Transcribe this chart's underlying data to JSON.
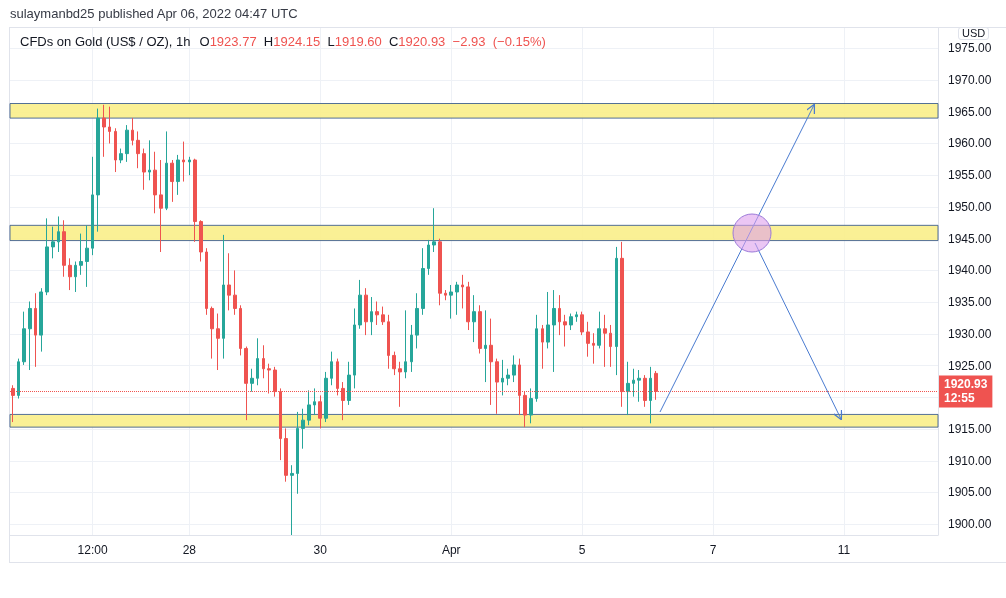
{
  "chart_data": {
    "type": "candlestick",
    "title": "CFDs on Gold (US$ / OZ), 1h",
    "subtitle": "O1923.77 H1924.15 L1919.60 C1920.93 −2.93 (−0.15%)",
    "ylabel": "USD",
    "annotations": [
      "sulaymanbd25 published Apr 06, 2022 04:47 UTC"
    ],
    "categories": [
      null,
      null,
      null,
      null,
      null,
      null,
      null,
      null,
      null,
      null,
      null,
      null,
      null,
      null,
      "12:00",
      null,
      null,
      null,
      null,
      null,
      null,
      null,
      null,
      null,
      null,
      null,
      null,
      null,
      null,
      null,
      null,
      "28",
      null,
      null,
      null,
      null,
      null,
      null,
      null,
      null,
      null,
      null,
      null,
      null,
      null,
      null,
      null,
      null,
      null,
      null,
      null,
      null,
      null,
      null,
      "30",
      null,
      null,
      null,
      null,
      null,
      null,
      null,
      null,
      null,
      null,
      null,
      null,
      null,
      null,
      null,
      null,
      null,
      null,
      null,
      null,
      null,
      null,
      "Apr",
      null,
      null,
      null,
      null,
      null,
      null,
      null,
      null,
      null,
      null,
      null,
      null,
      null,
      null,
      null,
      null,
      null,
      null,
      null,
      null,
      null,
      null,
      "5",
      null,
      null,
      null,
      null,
      null,
      null,
      null,
      null,
      null,
      null,
      null,
      null,
      null,
      null,
      null,
      null,
      null,
      null,
      null,
      null,
      null,
      null,
      "7",
      null,
      null,
      null,
      null,
      null,
      null,
      null,
      null,
      null,
      null,
      null,
      null,
      null,
      null,
      null,
      null,
      null,
      null,
      null,
      null,
      null,
      null,
      "11",
      null,
      null,
      null,
      null,
      null,
      null,
      null,
      null,
      null,
      null,
      null,
      null,
      null,
      null,
      null,
      null
    ],
    "ohlc": [
      [
        1921.4,
        1921.9,
        1916.1,
        1920.3
      ],
      [
        1920.3,
        1926.1,
        1919.8,
        1925.6
      ],
      [
        1925.6,
        1933.5,
        1925.1,
        1930.8
      ],
      [
        1930.8,
        1935.1,
        1924.3,
        1934.0
      ],
      [
        1934.0,
        1936.4,
        1924.8,
        1929.8
      ],
      [
        1929.8,
        1937.2,
        1927.2,
        1936.6
      ],
      [
        1936.6,
        1948.2,
        1936.1,
        1943.7
      ],
      [
        1943.7,
        1946.9,
        1941.9,
        1944.5
      ],
      [
        1944.5,
        1948.5,
        1942.9,
        1946.1
      ],
      [
        1946.1,
        1947.9,
        1939.0,
        1940.8
      ],
      [
        1940.8,
        1941.9,
        1936.9,
        1939.0
      ],
      [
        1939.0,
        1941.4,
        1936.6,
        1940.8
      ],
      [
        1940.8,
        1945.8,
        1939.3,
        1941.4
      ],
      [
        1941.4,
        1947.1,
        1937.4,
        1943.5
      ],
      [
        1943.5,
        1957.9,
        1942.4,
        1951.9
      ],
      [
        1951.9,
        1965.5,
        1946.1,
        1964.0
      ],
      [
        1964.0,
        1966.1,
        1957.9,
        1962.6
      ],
      [
        1962.6,
        1965.8,
        1960.0,
        1961.9
      ],
      [
        1961.9,
        1962.4,
        1955.5,
        1957.4
      ],
      [
        1957.4,
        1959.2,
        1956.9,
        1958.4
      ],
      [
        1958.4,
        1962.9,
        1957.1,
        1962.1
      ],
      [
        1962.1,
        1964.0,
        1959.7,
        1960.5
      ],
      [
        1960.5,
        1961.9,
        1956.1,
        1958.4
      ],
      [
        1958.4,
        1959.2,
        1952.7,
        1955.5
      ],
      [
        1955.5,
        1960.5,
        1954.2,
        1955.8
      ],
      [
        1955.8,
        1958.7,
        1949.0,
        1951.9
      ],
      [
        1951.9,
        1957.4,
        1942.9,
        1949.8
      ],
      [
        1949.8,
        1961.9,
        1949.5,
        1956.9
      ],
      [
        1956.9,
        1957.4,
        1950.8,
        1954.0
      ],
      [
        1954.0,
        1958.2,
        1951.9,
        1957.4
      ],
      [
        1957.4,
        1960.3,
        1954.0,
        1957.1
      ],
      [
        1957.1,
        1957.9,
        1955.0,
        1957.4
      ],
      [
        1957.4,
        1957.6,
        1944.5,
        1947.7
      ],
      [
        1947.7,
        1947.9,
        1941.4,
        1942.9
      ],
      [
        1942.9,
        1943.5,
        1933.0,
        1934.0
      ],
      [
        1934.0,
        1934.3,
        1926.1,
        1930.8
      ],
      [
        1930.8,
        1933.2,
        1924.3,
        1929.3
      ],
      [
        1929.3,
        1945.6,
        1926.1,
        1937.7
      ],
      [
        1937.7,
        1942.7,
        1933.7,
        1936.1
      ],
      [
        1936.1,
        1940.0,
        1933.0,
        1934.0
      ],
      [
        1934.0,
        1934.5,
        1926.6,
        1927.7
      ],
      [
        1927.7,
        1928.0,
        1916.4,
        1922.2
      ],
      [
        1922.2,
        1924.5,
        1920.9,
        1923.0
      ],
      [
        1923.0,
        1929.3,
        1921.9,
        1926.1
      ],
      [
        1926.1,
        1928.2,
        1923.0,
        1924.5
      ],
      [
        1924.5,
        1925.3,
        1920.6,
        1924.3
      ],
      [
        1924.3,
        1924.8,
        1920.1,
        1920.9
      ],
      [
        1920.9,
        1921.4,
        1910.1,
        1913.5
      ],
      [
        1913.5,
        1915.1,
        1906.7,
        1907.7
      ],
      [
        1907.7,
        1909.3,
        1898.3,
        1908.0
      ],
      [
        1908.0,
        1917.7,
        1904.8,
        1915.1
      ],
      [
        1915.1,
        1918.2,
        1911.9,
        1916.4
      ],
      [
        1916.4,
        1921.1,
        1915.6,
        1918.8
      ],
      [
        1918.8,
        1921.4,
        1917.2,
        1919.3
      ],
      [
        1919.3,
        1920.3,
        1915.1,
        1916.7
      ],
      [
        1916.7,
        1924.0,
        1916.1,
        1923.0
      ],
      [
        1923.0,
        1927.2,
        1921.9,
        1925.6
      ],
      [
        1925.6,
        1926.1,
        1920.3,
        1921.4
      ],
      [
        1921.4,
        1922.4,
        1916.4,
        1919.5
      ],
      [
        1919.5,
        1925.6,
        1918.8,
        1923.5
      ],
      [
        1923.5,
        1934.0,
        1921.4,
        1931.4
      ],
      [
        1931.4,
        1938.5,
        1930.8,
        1936.1
      ],
      [
        1936.1,
        1937.2,
        1929.8,
        1931.9
      ],
      [
        1931.9,
        1935.8,
        1929.8,
        1933.5
      ],
      [
        1933.5,
        1935.1,
        1931.4,
        1933.0
      ],
      [
        1933.0,
        1934.3,
        1931.4,
        1931.9
      ],
      [
        1931.9,
        1933.0,
        1924.5,
        1926.6
      ],
      [
        1926.6,
        1927.2,
        1923.5,
        1924.5
      ],
      [
        1924.5,
        1925.6,
        1918.5,
        1924.0
      ],
      [
        1924.0,
        1933.7,
        1923.0,
        1925.6
      ],
      [
        1925.6,
        1931.4,
        1924.0,
        1929.8
      ],
      [
        1929.8,
        1936.4,
        1927.7,
        1934.0
      ],
      [
        1934.0,
        1943.5,
        1933.0,
        1940.3
      ],
      [
        1940.3,
        1944.8,
        1939.3,
        1944.0
      ],
      [
        1944.0,
        1949.8,
        1942.9,
        1944.5
      ],
      [
        1944.5,
        1945.0,
        1934.5,
        1936.4
      ],
      [
        1936.4,
        1936.9,
        1935.3,
        1936.1
      ],
      [
        1936.1,
        1937.7,
        1932.4,
        1936.6
      ],
      [
        1936.6,
        1938.2,
        1933.0,
        1937.7
      ],
      [
        1937.7,
        1939.3,
        1934.0,
        1937.4
      ],
      [
        1937.4,
        1938.2,
        1930.6,
        1931.9
      ],
      [
        1931.9,
        1936.1,
        1928.7,
        1933.5
      ],
      [
        1933.5,
        1934.5,
        1926.9,
        1927.7
      ],
      [
        1927.7,
        1933.7,
        1922.4,
        1928.2
      ],
      [
        1928.2,
        1932.4,
        1918.8,
        1925.6
      ],
      [
        1925.6,
        1926.1,
        1917.4,
        1922.4
      ],
      [
        1922.4,
        1925.9,
        1920.3,
        1923.0
      ],
      [
        1923.0,
        1924.5,
        1921.9,
        1923.5
      ],
      [
        1923.5,
        1926.6,
        1922.4,
        1925.1
      ],
      [
        1925.1,
        1926.1,
        1917.2,
        1920.3
      ],
      [
        1920.3,
        1920.9,
        1915.3,
        1917.2
      ],
      [
        1917.2,
        1921.4,
        1915.9,
        1919.8
      ],
      [
        1919.8,
        1933.0,
        1919.3,
        1930.8
      ],
      [
        1930.8,
        1931.4,
        1924.5,
        1928.7
      ],
      [
        1928.7,
        1936.6,
        1927.7,
        1931.4
      ],
      [
        1931.4,
        1936.9,
        1924.0,
        1934.0
      ],
      [
        1934.0,
        1936.1,
        1929.8,
        1931.9
      ],
      [
        1931.9,
        1933.0,
        1928.0,
        1931.4
      ],
      [
        1931.4,
        1933.2,
        1930.6,
        1932.7
      ],
      [
        1932.7,
        1933.5,
        1931.9,
        1933.0
      ],
      [
        1933.0,
        1933.5,
        1929.8,
        1930.3
      ],
      [
        1930.3,
        1931.9,
        1926.4,
        1928.5
      ],
      [
        1928.5,
        1930.1,
        1925.3,
        1928.2
      ],
      [
        1928.2,
        1933.5,
        1927.7,
        1930.8
      ],
      [
        1930.8,
        1933.0,
        1924.8,
        1930.1
      ],
      [
        1930.1,
        1931.4,
        1924.8,
        1928.0
      ],
      [
        1928.0,
        1943.7,
        1923.5,
        1941.9
      ],
      [
        1941.9,
        1944.5,
        1918.5,
        1920.9
      ],
      [
        1920.9,
        1925.6,
        1917.2,
        1922.2
      ],
      [
        1922.2,
        1924.5,
        1920.1,
        1922.7
      ],
      [
        1922.7,
        1924.3,
        1919.3,
        1923.0
      ],
      [
        1923.0,
        1923.5,
        1918.5,
        1919.5
      ],
      [
        1919.5,
        1924.8,
        1915.9,
        1923.0
      ],
      [
        1923.77,
        1924.15,
        1919.6,
        1920.93
      ],
      null,
      null,
      null,
      null,
      null,
      null,
      null,
      null,
      null,
      null,
      null,
      null,
      null,
      null,
      null,
      null,
      null,
      null,
      null,
      null,
      null,
      null,
      null,
      null,
      null,
      null,
      null,
      null,
      null,
      null,
      null,
      null,
      null,
      null,
      null,
      null,
      null,
      null,
      null,
      null,
      null,
      null,
      null,
      null,
      null,
      null,
      null,
      null,
      null
    ],
    "colors": [
      "#ef5350",
      "#26a69a",
      "#26a69a",
      "#26a69a",
      "#ef5350",
      "#26a69a",
      "#26a69a",
      "#26a69a",
      "#26a69a",
      "#ef5350",
      "#ef5350",
      "#26a69a",
      "#26a69a",
      "#26a69a",
      "#26a69a",
      "#26a69a",
      "#ef5350",
      "#ef5350",
      "#ef5350",
      "#26a69a",
      "#26a69a",
      "#ef5350",
      "#ef5350",
      "#ef5350",
      "#26a69a",
      "#ef5350",
      "#ef5350",
      "#26a69a",
      "#ef5350",
      "#26a69a",
      "#ef5350",
      "#26a69a",
      "#ef5350",
      "#ef5350",
      "#ef5350",
      "#ef5350",
      "#ef5350",
      "#26a69a",
      "#ef5350",
      "#ef5350",
      "#ef5350",
      "#ef5350",
      "#26a69a",
      "#26a69a",
      "#ef5350",
      "#ef5350",
      "#ef5350",
      "#ef5350",
      "#ef5350",
      "#26a69a",
      "#26a69a",
      "#26a69a",
      "#26a69a",
      "#26a69a",
      "#ef5350",
      "#26a69a",
      "#26a69a",
      "#ef5350",
      "#ef5350",
      "#26a69a",
      "#26a69a",
      "#26a69a",
      "#ef5350",
      "#26a69a",
      "#ef5350",
      "#ef5350",
      "#ef5350",
      "#ef5350",
      "#ef5350",
      "#26a69a",
      "#26a69a",
      "#26a69a",
      "#26a69a",
      "#26a69a",
      "#26a69a",
      "#ef5350",
      "#ef5350",
      "#26a69a",
      "#26a69a",
      "#ef5350",
      "#ef5350",
      "#26a69a",
      "#ef5350",
      "#26a69a",
      "#ef5350",
      "#ef5350",
      "#26a69a",
      "#26a69a",
      "#26a69a",
      "#ef5350",
      "#ef5350",
      "#26a69a",
      "#26a69a",
      "#ef5350",
      "#26a69a",
      "#26a69a",
      "#ef5350",
      "#ef5350",
      "#26a69a",
      "#26a69a",
      "#ef5350",
      "#ef5350",
      "#ef5350",
      "#26a69a",
      "#ef5350",
      "#ef5350",
      "#26a69a",
      "#ef5350",
      "#26a69a",
      "#26a69a",
      "#26a69a",
      "#ef5350",
      "#26a69a",
      "#ef5350",
      null,
      null,
      null,
      null,
      null,
      null,
      null,
      null,
      null,
      null,
      null,
      null,
      null,
      null,
      null,
      null,
      null,
      null,
      null,
      null,
      null,
      null,
      null,
      null,
      null,
      null,
      null,
      null,
      null,
      null,
      null,
      null,
      null,
      null,
      null,
      null,
      null,
      null,
      null,
      null,
      null,
      null,
      null,
      null,
      null,
      null,
      null,
      null,
      null
    ],
    "ylim": [
      1898.3,
      1978.2
    ],
    "yticks": [
      {
        "value": 1900,
        "label": "1900.00"
      },
      {
        "value": 1905,
        "label": "1905.00"
      },
      {
        "value": 1910,
        "label": "1910.00"
      },
      {
        "value": 1915,
        "label": "1915.00"
      },
      {
        "value": 1920,
        "label": null
      },
      {
        "value": 1925,
        "label": "1925.00"
      },
      {
        "value": 1930,
        "label": "1930.00"
      },
      {
        "value": 1935,
        "label": "1935.00"
      },
      {
        "value": 1940,
        "label": "1940.00"
      },
      {
        "value": 1945,
        "label": "1945.00"
      },
      {
        "value": 1950,
        "label": "1950.00"
      },
      {
        "value": 1955,
        "label": "1955.00"
      },
      {
        "value": 1960,
        "label": "1960.00"
      },
      {
        "value": 1965,
        "label": "1965.00"
      },
      {
        "value": 1970,
        "label": "1970.00"
      },
      {
        "value": 1975,
        "label": "1975.00"
      }
    ],
    "ref_lines": [
      {
        "axis": "y",
        "value": 1920.93,
        "label": "1920.93\n12:55",
        "color": "#ef5350",
        "line_style": "dotted"
      }
    ],
    "bands": [
      {
        "axis": "y",
        "from": 1964.0,
        "to": 1966.3,
        "color": "#f9ee8a"
      },
      {
        "axis": "y",
        "from": 1944.7,
        "to": 1947.1,
        "color": "#f9ee8a"
      },
      {
        "axis": "y",
        "from": 1915.3,
        "to": 1917.3,
        "color": "#f9ee8a"
      }
    ],
    "grid": true
  }
}
